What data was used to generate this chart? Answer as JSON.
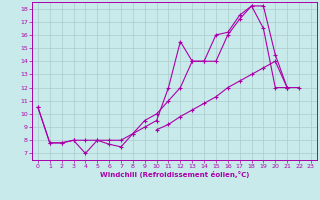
{
  "background_color": "#c8eaea",
  "grid_color": "#aacccc",
  "line_color": "#aa00aa",
  "xlabel": "Windchill (Refroidissement éolien,°C)",
  "xlim": [
    -0.5,
    23.5
  ],
  "ylim": [
    6.5,
    18.5
  ],
  "yticks": [
    7,
    8,
    9,
    10,
    11,
    12,
    13,
    14,
    15,
    16,
    17,
    18
  ],
  "xticks": [
    0,
    1,
    2,
    3,
    4,
    5,
    6,
    7,
    8,
    9,
    10,
    11,
    12,
    13,
    14,
    15,
    16,
    17,
    18,
    19,
    20,
    21,
    22,
    23
  ],
  "series1_x": [
    0,
    1,
    2,
    3,
    4,
    5,
    6,
    7,
    8,
    9,
    10,
    11,
    12,
    13,
    14,
    15,
    16,
    17,
    18,
    19,
    20,
    21
  ],
  "series1_y": [
    10.5,
    7.8,
    7.8,
    8.0,
    7.0,
    8.0,
    7.7,
    7.5,
    8.5,
    9.5,
    10.0,
    11.0,
    12.0,
    14.0,
    14.0,
    16.0,
    16.2,
    17.5,
    18.2,
    16.5,
    12.0,
    12.0
  ],
  "series2_x": [
    0,
    1,
    2,
    3,
    4,
    5,
    6,
    7,
    8,
    9,
    10,
    11,
    12,
    13,
    14,
    15,
    16,
    17,
    18,
    19,
    20,
    21
  ],
  "series2_y": [
    10.5,
    7.8,
    7.8,
    8.0,
    8.0,
    8.0,
    8.0,
    8.0,
    8.5,
    9.0,
    9.5,
    12.0,
    15.5,
    14.0,
    14.0,
    14.0,
    16.0,
    17.2,
    18.2,
    18.2,
    14.5,
    12.0
  ],
  "series3_x": [
    10,
    11,
    12,
    13,
    14,
    15,
    16,
    17,
    18,
    19,
    20,
    21,
    22
  ],
  "series3_y": [
    8.8,
    9.2,
    9.8,
    10.3,
    10.8,
    11.3,
    12.0,
    12.5,
    13.0,
    13.5,
    14.0,
    12.0,
    12.0
  ]
}
